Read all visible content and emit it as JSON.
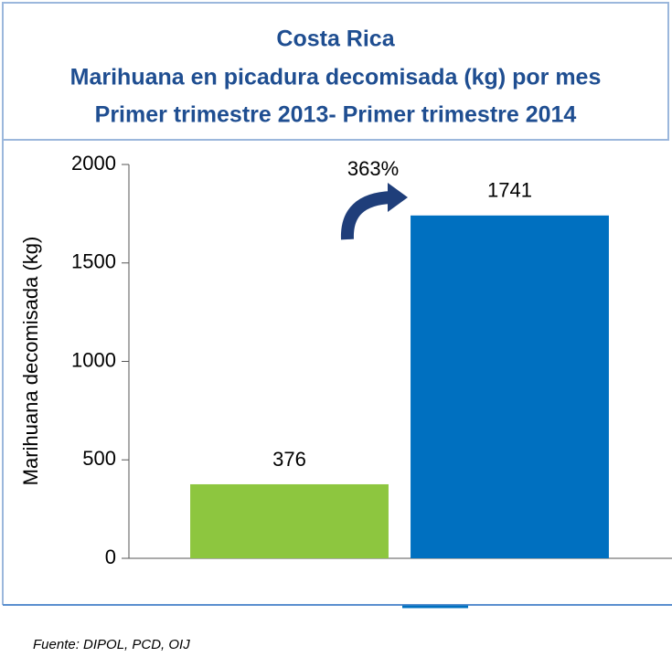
{
  "chart_data": {
    "type": "bar",
    "title_lines": [
      "Costa Rica",
      "Marihuana en picadura decomisada (kg) por mes",
      "Primer trimestre 2013- Primer trimestre 2014"
    ],
    "ylabel": "Marihuana decomisada (kg)",
    "categories": [
      null,
      null
    ],
    "values": [
      376,
      1741
    ],
    "colors": [
      "#8dc63f",
      "#0070c0"
    ],
    "ylim": [
      0,
      2000
    ],
    "yticks": [
      0,
      500,
      1000,
      1500,
      2000
    ],
    "annotation": "363%",
    "source": "Fuente: DIPOL, PCD, OIJ"
  }
}
